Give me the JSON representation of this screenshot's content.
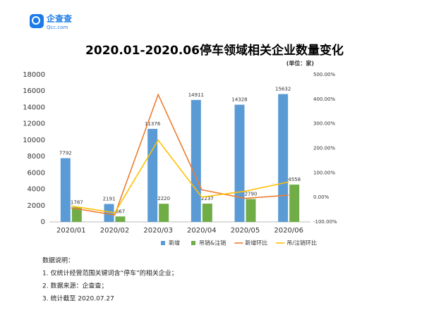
{
  "logo": {
    "name": "企查查",
    "domain": "Qcc.com"
  },
  "chart_data": {
    "type": "bar-line",
    "title": "2020.01-2020.06停车领域相关企业数量变化",
    "unit_label": "(单位：家)",
    "categories": [
      "2020/01",
      "2020/02",
      "2020/03",
      "2020/04",
      "2020/05",
      "2020/06"
    ],
    "series": [
      {
        "name": "新增",
        "color": "#5b9bd5",
        "type": "bar",
        "values": [
          7792,
          2191,
          11376,
          14911,
          14328,
          15632
        ]
      },
      {
        "name": "吊销&注销",
        "color": "#70ad47",
        "type": "bar",
        "values": [
          1787,
          667,
          2220,
          2237,
          2790,
          4558
        ]
      },
      {
        "name": "新增环比",
        "color": "#ed7d31",
        "type": "line",
        "axis": "y2",
        "values": [
          -43,
          -72,
          419,
          31,
          -4,
          9
        ]
      },
      {
        "name": "吊/注销环比",
        "color": "#ffc000",
        "type": "line",
        "axis": "y2",
        "values": [
          -35,
          -63,
          233,
          1,
          25,
          63
        ]
      }
    ],
    "ylim": [
      0,
      18000
    ],
    "yticks": [
      0,
      2000,
      4000,
      6000,
      8000,
      10000,
      12000,
      14000,
      16000,
      18000
    ],
    "y2lim": [
      -100,
      500
    ],
    "y2ticks": [
      {
        "value": -100,
        "label": "-100.00%"
      },
      {
        "value": 0,
        "label": "0.00%"
      },
      {
        "value": 100,
        "label": "100.00%"
      },
      {
        "value": 200,
        "label": "200.00%"
      },
      {
        "value": 300,
        "label": "300.00%"
      },
      {
        "value": 400,
        "label": "400.00%"
      },
      {
        "value": 500,
        "label": "500.00%"
      }
    ],
    "grid": false,
    "legend": "bottom"
  },
  "notes": {
    "title": "数据说明：",
    "items": [
      "1. 仅统计经营范围关键词含“停车”的相关企业；",
      "2. 数据来源：企查查；",
      "3. 统计截至 2020.07.27"
    ]
  }
}
